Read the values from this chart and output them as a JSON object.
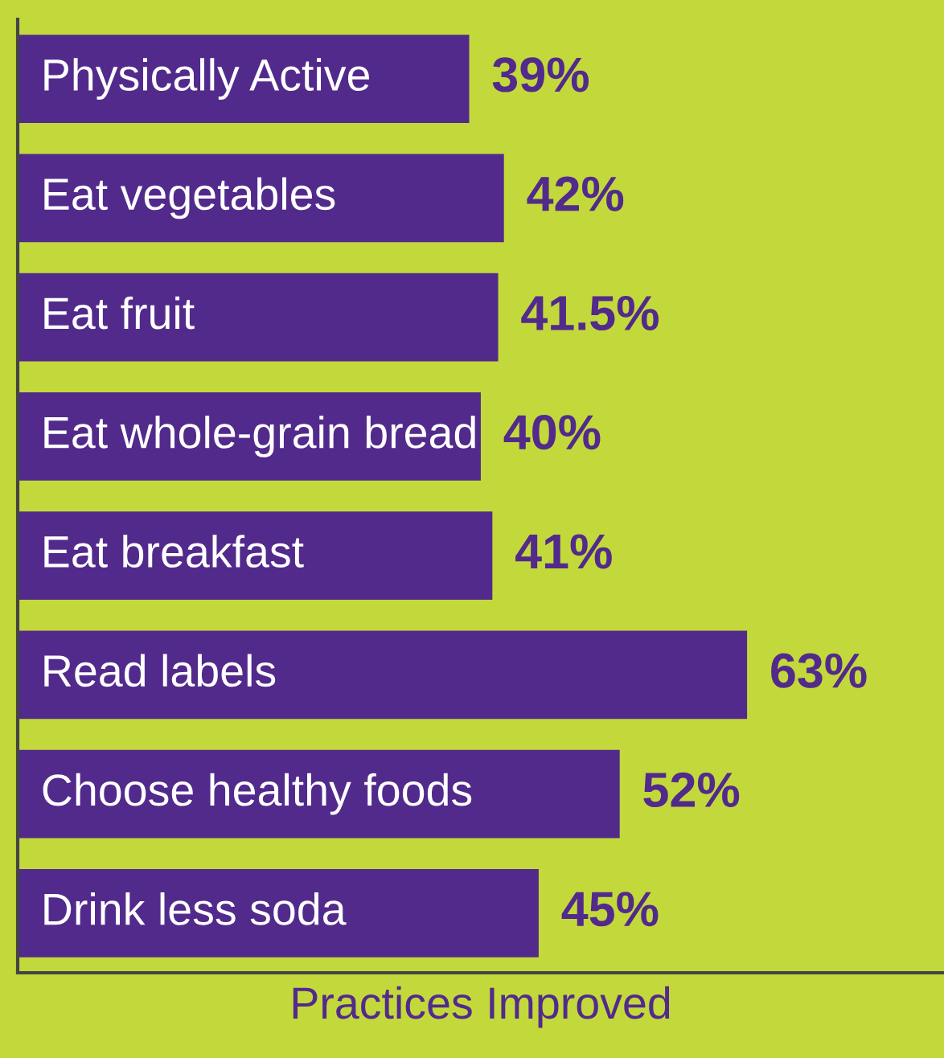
{
  "chart_data": {
    "type": "bar",
    "orientation": "horizontal",
    "xlabel": "Practices Improved",
    "categories": [
      "Physically Active",
      "Eat vegetables",
      "Eat fruit",
      "Eat whole-grain bread",
      "Eat breakfast",
      "Read labels",
      "Choose healthy foods",
      "Drink less soda"
    ],
    "values": [
      39,
      42,
      41.5,
      40,
      41,
      63,
      52,
      45
    ],
    "value_labels": [
      "39%",
      "42%",
      "41.5%",
      "40%",
      "41%",
      "63%",
      "52%",
      "45%"
    ],
    "color": "#522a8c",
    "data_labels": true,
    "legend": false
  }
}
